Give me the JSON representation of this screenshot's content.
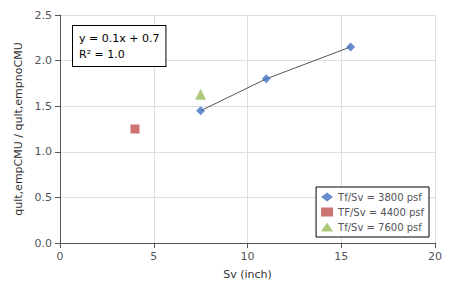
{
  "chart_data": {
    "type": "scatter",
    "xlabel": "Sv (inch)",
    "ylabel": "qult,empCMU / qult,empnoCMU",
    "xlim": [
      0,
      20
    ],
    "ylim": [
      0,
      2.5
    ],
    "xticks": [
      0,
      5,
      10,
      15,
      20
    ],
    "yticks": [
      {
        "value": 0,
        "label": "0.0"
      },
      {
        "value": 0.5,
        "label": "0.5"
      },
      {
        "value": 1.0,
        "label": "1.0"
      },
      {
        "value": 1.5,
        "label": "1.5"
      },
      {
        "value": 2.0,
        "label": "2.0"
      },
      {
        "value": 2.5,
        "label": "2.5"
      }
    ],
    "grid": true,
    "legend": "lower right",
    "annotations": [
      "y = 0.1x + 0.7\nR² = 1.0"
    ],
    "series": [
      {
        "name": "Tf/Sv = 3800 psf",
        "x": [
          7.5,
          11,
          15.5
        ],
        "values": [
          1.45,
          1.8,
          2.15
        ],
        "color": "#4472C4",
        "marker": "diamond",
        "line_style": "solid"
      },
      {
        "name": "TF/Sv = 4400 psf",
        "x": [
          4
        ],
        "values": [
          1.25
        ],
        "color": "#C0504D",
        "marker": "square"
      },
      {
        "name": "Tf/Sv = 7600 psf",
        "x": [
          7.5
        ],
        "values": [
          1.63
        ],
        "color": "#9BBB59",
        "marker": "triangle"
      }
    ]
  }
}
